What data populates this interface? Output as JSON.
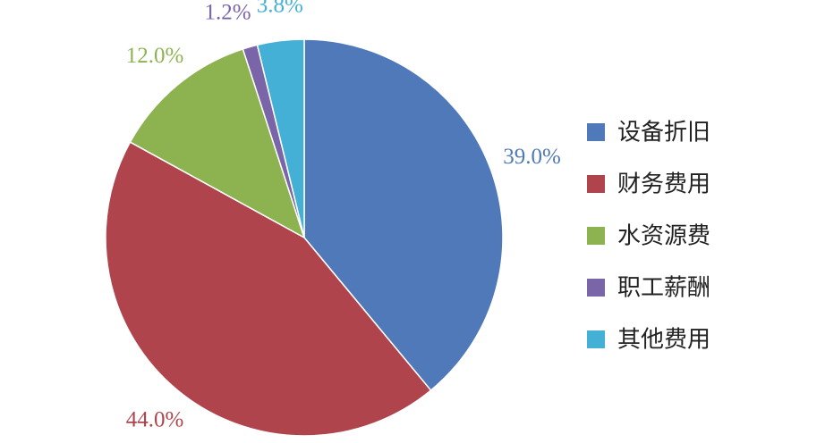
{
  "chart_data": {
    "type": "pie",
    "categories": [
      "设备折旧",
      "财务费用",
      "水资源费",
      "职工薪酬",
      "其他费用"
    ],
    "values": [
      39.0,
      44.0,
      12.0,
      1.2,
      3.8
    ],
    "value_labels": [
      "39.0%",
      "44.0%",
      "12.0%",
      "1.2%",
      "3.8%"
    ],
    "colors": [
      "#4F79B8",
      "#B0444D",
      "#8DB351",
      "#7A65A8",
      "#45B0D5"
    ],
    "legend_position": "right"
  }
}
